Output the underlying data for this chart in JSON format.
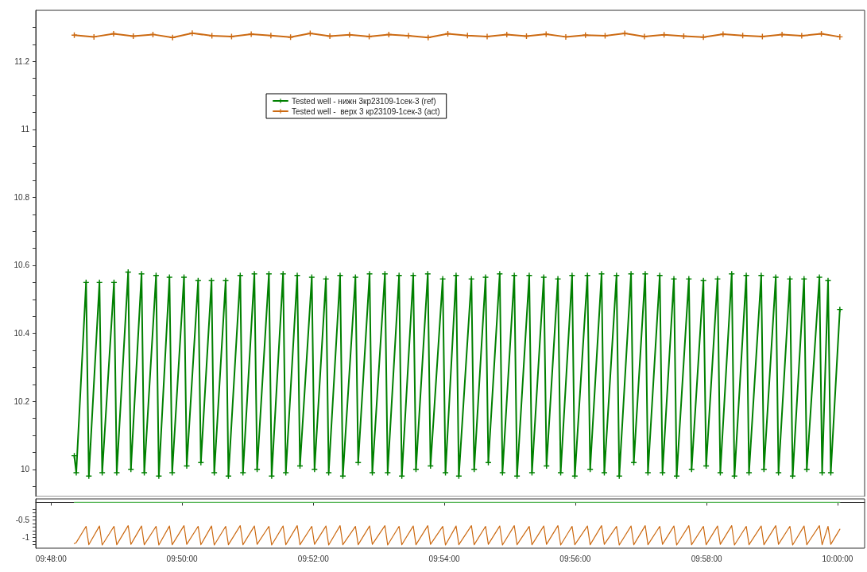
{
  "chart_data": [
    {
      "type": "line",
      "xlim": [
        9.7961,
        10.0069
      ],
      "ylim": [
        9.92,
        11.35
      ],
      "yticks": [
        {
          "value": 9.95,
          "label": null
        },
        {
          "value": 10,
          "label": "10"
        },
        {
          "value": 10.05,
          "label": null
        },
        {
          "value": 10.1,
          "label": null
        },
        {
          "value": 10.15,
          "label": null
        },
        {
          "value": 10.2,
          "label": "10.2"
        },
        {
          "value": 10.25,
          "label": null
        },
        {
          "value": 10.3,
          "label": null
        },
        {
          "value": 10.35,
          "label": null
        },
        {
          "value": 10.4,
          "label": "10.4"
        },
        {
          "value": 10.45,
          "label": null
        },
        {
          "value": 10.5,
          "label": null
        },
        {
          "value": 10.55,
          "label": null
        },
        {
          "value": 10.6,
          "label": "10.6"
        },
        {
          "value": 10.65,
          "label": null
        },
        {
          "value": 10.7,
          "label": null
        },
        {
          "value": 10.75,
          "label": null
        },
        {
          "value": 10.8,
          "label": "10.8"
        },
        {
          "value": 10.85,
          "label": null
        },
        {
          "value": 10.9,
          "label": null
        },
        {
          "value": 10.95,
          "label": null
        },
        {
          "value": 11,
          "label": "11"
        },
        {
          "value": 11.05,
          "label": null
        },
        {
          "value": 11.1,
          "label": null
        },
        {
          "value": 11.15,
          "label": null
        },
        {
          "value": 11.2,
          "label": "11.2"
        },
        {
          "value": 11.25,
          "label": null
        },
        {
          "value": 11.3,
          "label": null
        }
      ],
      "tick_labels": "y",
      "legend": "top left",
      "marker": "cross",
      "line_style": "solid",
      "series": [
        {
          "name": "Tested well - нижн 3кр23109-1сек-3 (ref)",
          "color": "#008000",
          "x": [
            9.8059,
            9.8064,
            9.8089,
            9.8096,
            9.8123,
            9.813,
            9.816,
            9.8167,
            9.8196,
            9.8203,
            9.823,
            9.8237,
            9.8267,
            9.8274,
            9.8301,
            9.8308,
            9.8338,
            9.8345,
            9.8374,
            9.8381,
            9.8408,
            9.8415,
            9.8444,
            9.8451,
            9.8481,
            9.8488,
            9.8517,
            9.8524,
            9.8554,
            9.8561,
            9.859,
            9.8597,
            9.8626,
            9.8633,
            9.8663,
            9.867,
            9.8699,
            9.8706,
            9.8735,
            9.8742,
            9.8774,
            9.8781,
            9.881,
            9.8817,
            9.8849,
            9.8856,
            9.8885,
            9.8892,
            9.8921,
            9.8928,
            9.8958,
            9.8965,
            9.8996,
            9.9003,
            9.903,
            9.9037,
            9.9069,
            9.9076,
            9.9105,
            9.9112,
            9.9141,
            9.9148,
            9.9178,
            9.9185,
            9.9216,
            9.9223,
            9.9253,
            9.926,
            9.9289,
            9.9296,
            9.9325,
            9.9332,
            9.9364,
            9.9371,
            9.94,
            9.9407,
            9.9438,
            9.9445,
            9.9475,
            9.9482,
            9.9511,
            9.9518,
            9.9548,
            9.9555,
            9.9584,
            9.9591,
            9.9622,
            9.9629,
            9.9659,
            9.9666,
            9.9695,
            9.9702,
            9.9731,
            9.9738,
            9.9768,
            9.9775,
            9.9806,
            9.9813,
            9.9843,
            9.985,
            9.9879,
            9.9886,
            9.9915,
            9.9922,
            9.9954,
            9.9961,
            9.9976,
            9.9983,
            10.0006
          ],
          "values": [
            10.04,
            9.99,
            10.55,
            9.98,
            10.55,
            9.99,
            10.55,
            9.99,
            10.58,
            10.0,
            10.575,
            9.99,
            10.57,
            9.98,
            10.565,
            9.99,
            10.565,
            10.01,
            10.555,
            10.02,
            10.555,
            9.99,
            10.555,
            9.98,
            10.57,
            9.99,
            10.575,
            10.0,
            10.575,
            9.98,
            10.575,
            9.99,
            10.57,
            10.01,
            10.565,
            10.0,
            10.56,
            9.99,
            10.57,
            9.98,
            10.565,
            10.02,
            10.575,
            9.99,
            10.575,
            9.99,
            10.57,
            9.98,
            10.57,
            10.0,
            10.575,
            10.01,
            10.56,
            9.99,
            10.57,
            9.98,
            10.56,
            10.0,
            10.565,
            10.02,
            10.575,
            9.99,
            10.57,
            9.98,
            10.57,
            9.99,
            10.565,
            10.01,
            10.56,
            9.99,
            10.57,
            9.98,
            10.57,
            10.0,
            10.575,
            9.99,
            10.57,
            9.98,
            10.575,
            10.02,
            10.575,
            9.99,
            10.57,
            9.99,
            10.56,
            9.98,
            10.56,
            10.0,
            10.555,
            10.01,
            10.56,
            9.99,
            10.575,
            9.98,
            10.57,
            9.99,
            10.57,
            10.0,
            10.565,
            9.99,
            10.56,
            9.98,
            10.56,
            10.0,
            10.565,
            9.99,
            10.555,
            9.99,
            10.47
          ]
        },
        {
          "name": "Tested well -  верх 3 кр23109-1сек-3 (act)",
          "color": "#cc6a12",
          "x": [
            9.8059,
            9.8109,
            9.8159,
            9.8209,
            9.8259,
            9.8309,
            9.8359,
            9.8409,
            9.8459,
            9.8509,
            9.8559,
            9.8609,
            9.8659,
            9.8709,
            9.8759,
            9.8809,
            9.8859,
            9.8909,
            9.8959,
            9.9009,
            9.9059,
            9.9109,
            9.9159,
            9.9209,
            9.9259,
            9.9309,
            9.9359,
            9.9409,
            9.9459,
            9.9509,
            9.9559,
            9.9609,
            9.9659,
            9.9709,
            9.9759,
            9.9809,
            9.9859,
            9.9909,
            9.9959,
            10.0006
          ],
          "values": [
            11.277,
            11.272,
            11.281,
            11.274,
            11.279,
            11.27,
            11.283,
            11.275,
            11.273,
            11.28,
            11.276,
            11.271,
            11.282,
            11.274,
            11.278,
            11.273,
            11.279,
            11.275,
            11.27,
            11.281,
            11.276,
            11.273,
            11.279,
            11.274,
            11.28,
            11.272,
            11.277,
            11.275,
            11.282,
            11.273,
            11.278,
            11.274,
            11.271,
            11.28,
            11.276,
            11.273,
            11.279,
            11.275,
            11.281,
            11.272
          ]
        }
      ]
    },
    {
      "type": "line",
      "xlim": [
        9.7961,
        10.0069
      ],
      "ylim": [
        -1.3,
        0.1
      ],
      "yticks": [
        {
          "value": -0.2,
          "label": null
        },
        {
          "value": -0.3,
          "label": null
        },
        {
          "value": -0.4,
          "label": null
        },
        -0.5,
        {
          "value": -0.6,
          "label": null
        },
        {
          "value": -0.7,
          "label": null
        },
        {
          "value": -0.8,
          "label": null
        },
        {
          "value": -0.9,
          "label": null
        },
        -1,
        {
          "value": -1.1,
          "label": null
        },
        {
          "value": -1.2,
          "label": null
        }
      ],
      "xticks": [
        {
          "value": 9.8,
          "label": "09:48:00"
        },
        {
          "value": 9.8333,
          "label": "09:50:00"
        },
        {
          "value": 9.8667,
          "label": "09:52:00"
        },
        {
          "value": 9.9,
          "label": "09:54:00"
        },
        {
          "value": 9.9333,
          "label": "09:56:00"
        },
        {
          "value": 9.9667,
          "label": "09:58:00"
        },
        {
          "value": 10,
          "label": "10:00:00"
        }
      ],
      "marker": "none",
      "line_style": "solid",
      "series": [
        {
          "color": "#5cb85c",
          "x": [
            9.8059,
            10.0006
          ],
          "values": [
            0,
            0
          ]
        },
        {
          "color": "#cc6a12",
          "x": [
            9.8059,
            9.8064,
            9.8089,
            9.8096,
            9.8123,
            9.813,
            9.816,
            9.8167,
            9.8196,
            9.8203,
            9.823,
            9.8237,
            9.8267,
            9.8274,
            9.8301,
            9.8308,
            9.8338,
            9.8345,
            9.8374,
            9.8381,
            9.8408,
            9.8415,
            9.8444,
            9.8451,
            9.8481,
            9.8488,
            9.8517,
            9.8524,
            9.8554,
            9.8561,
            9.859,
            9.8597,
            9.8626,
            9.8633,
            9.8663,
            9.867,
            9.8699,
            9.8706,
            9.8735,
            9.8742,
            9.8774,
            9.8781,
            9.881,
            9.8817,
            9.8849,
            9.8856,
            9.8885,
            9.8892,
            9.8921,
            9.8928,
            9.8958,
            9.8965,
            9.8996,
            9.9003,
            9.903,
            9.9037,
            9.9069,
            9.9076,
            9.9105,
            9.9112,
            9.9141,
            9.9148,
            9.9178,
            9.9185,
            9.9216,
            9.9223,
            9.9253,
            9.926,
            9.9289,
            9.9296,
            9.9325,
            9.9332,
            9.9364,
            9.9371,
            9.94,
            9.9407,
            9.9438,
            9.9445,
            9.9475,
            9.9482,
            9.9511,
            9.9518,
            9.9548,
            9.9555,
            9.9584,
            9.9591,
            9.9622,
            9.9629,
            9.9659,
            9.9666,
            9.9695,
            9.9702,
            9.9731,
            9.9738,
            9.9768,
            9.9775,
            9.9806,
            9.9813,
            9.9843,
            9.985,
            9.9879,
            9.9886,
            9.9915,
            9.9922,
            9.9954,
            9.9961,
            9.9976,
            9.9983,
            10.0006
          ],
          "values": [
            -1.17,
            -1.14,
            -0.68,
            -1.2,
            -0.67,
            -1.21,
            -0.68,
            -1.2,
            -0.66,
            -1.19,
            -0.67,
            -1.2,
            -0.68,
            -1.21,
            -0.67,
            -1.2,
            -0.66,
            -1.19,
            -0.68,
            -1.2,
            -0.67,
            -1.21,
            -0.68,
            -1.2,
            -0.66,
            -1.2,
            -0.67,
            -1.19,
            -0.68,
            -1.21,
            -0.67,
            -1.2,
            -0.66,
            -1.2,
            -0.68,
            -1.19,
            -0.67,
            -1.21,
            -0.66,
            -1.2,
            -0.68,
            -1.2,
            -0.67,
            -1.19,
            -0.66,
            -1.21,
            -0.68,
            -1.2,
            -0.67,
            -1.2,
            -0.66,
            -1.19,
            -0.68,
            -1.21,
            -0.67,
            -1.2,
            -0.66,
            -1.2,
            -0.68,
            -1.19,
            -0.67,
            -1.21,
            -0.66,
            -1.2,
            -0.68,
            -1.2,
            -0.67,
            -1.19,
            -0.66,
            -1.21,
            -0.68,
            -1.2,
            -0.67,
            -1.2,
            -0.66,
            -1.19,
            -0.68,
            -1.21,
            -0.67,
            -1.2,
            -0.66,
            -1.2,
            -0.68,
            -1.19,
            -0.67,
            -1.21,
            -0.66,
            -1.2,
            -0.68,
            -1.2,
            -0.67,
            -1.19,
            -0.66,
            -1.21,
            -0.68,
            -1.2,
            -0.67,
            -1.2,
            -0.66,
            -1.19,
            -0.68,
            -1.21,
            -0.67,
            -1.2,
            -0.66,
            -1.2,
            -0.68,
            -1.19,
            -0.76
          ]
        }
      ]
    }
  ]
}
